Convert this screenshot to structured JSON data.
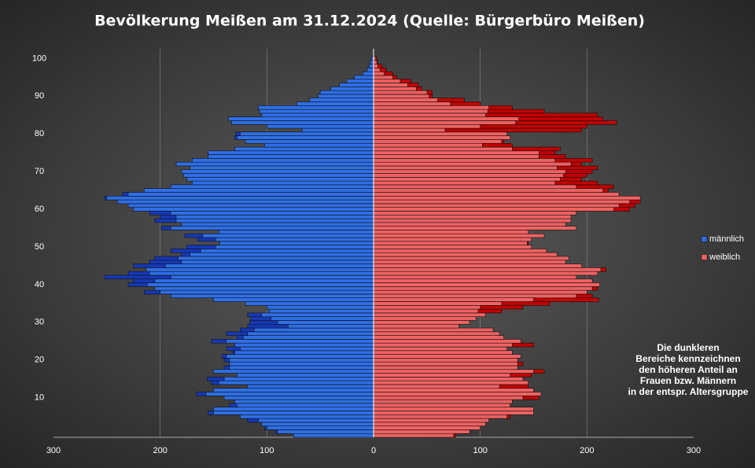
{
  "chart_data": {
    "type": "pyramid",
    "title": "Bevölkerung  Meißen  am  31.12.2024  (Quelle:  Bürgerbüro  Meißen)",
    "categories": [
      null,
      null,
      null,
      null,
      null,
      null,
      null,
      null,
      null,
      null,
      10,
      null,
      null,
      null,
      null,
      null,
      null,
      null,
      null,
      null,
      20,
      null,
      null,
      null,
      null,
      null,
      null,
      null,
      null,
      null,
      30,
      null,
      null,
      null,
      null,
      null,
      null,
      null,
      null,
      null,
      40,
      null,
      null,
      null,
      null,
      null,
      null,
      null,
      null,
      null,
      50,
      null,
      null,
      null,
      null,
      null,
      null,
      null,
      null,
      null,
      60,
      null,
      null,
      null,
      null,
      null,
      null,
      null,
      null,
      null,
      70,
      null,
      null,
      null,
      null,
      null,
      null,
      null,
      null,
      null,
      80,
      null,
      null,
      null,
      null,
      null,
      null,
      null,
      null,
      null,
      90,
      null,
      null,
      null,
      null,
      null,
      null,
      null,
      null,
      null,
      100
    ],
    "series": [
      {
        "name": "männlich",
        "color": "#2f6fe6",
        "dark_color": "#1538b5",
        "side": "left",
        "values": [
          75,
          92,
          102,
          105,
          118,
          125,
          155,
          150,
          135,
          130,
          140,
          166,
          150,
          118,
          152,
          156,
          128,
          150,
          140,
          135,
          140,
          142,
          132,
          138,
          130,
          152,
          128,
          138,
          125,
          118,
          116,
          115,
          118,
          98,
          100,
          120,
          150,
          190,
          215,
          205,
          230,
          225,
          252,
          230,
          213,
          225,
          210,
          205,
          180,
          190,
          175,
          144,
          165,
          177,
          145,
          199,
          180,
          205,
          200,
          210,
          225,
          230,
          240,
          252,
          235,
          215,
          190,
          170,
          175,
          178,
          180,
          172,
          185,
          170,
          155,
          155,
          130,
          102,
          120,
          130,
          129,
          67,
          100,
          133,
          136,
          105,
          107,
          108,
          72,
          60,
          52,
          50,
          40,
          32,
          25,
          18,
          10,
          6,
          4,
          3,
          2
        ]
      },
      {
        "name": "weiblich",
        "color": "#f06262",
        "dark_color": "#c00000",
        "side": "right",
        "values": [
          77,
          90,
          100,
          105,
          108,
          128,
          150,
          150,
          128,
          130,
          155,
          157,
          150,
          145,
          145,
          140,
          148,
          160,
          135,
          140,
          135,
          138,
          130,
          125,
          150,
          138,
          122,
          118,
          112,
          80,
          90,
          96,
          105,
          120,
          140,
          165,
          211,
          205,
          200,
          210,
          212,
          205,
          190,
          210,
          218,
          195,
          180,
          183,
          172,
          162,
          148,
          145,
          148,
          160,
          145,
          190,
          180,
          185,
          185,
          190,
          240,
          245,
          250,
          250,
          230,
          220,
          225,
          210,
          195,
          200,
          205,
          210,
          195,
          205,
          180,
          170,
          175,
          130,
          122,
          128,
          125,
          195,
          200,
          228,
          215,
          210,
          160,
          130,
          100,
          85,
          55,
          55,
          45,
          42,
          35,
          22,
          18,
          12,
          8,
          4,
          3
        ]
      }
    ],
    "xlim": [
      -300,
      300
    ],
    "xticks": [
      {
        "value": -300,
        "label": "300"
      },
      {
        "value": -200,
        "label": "200"
      },
      {
        "value": -100,
        "label": "100"
      },
      0,
      100,
      200,
      300
    ],
    "grid": true,
    "legend": "right",
    "annotation": [
      "Die dunkleren",
      "Bereiche kennzeichnen",
      "den höheren Anteil an",
      "Frauen bzw. Männern",
      "in der entspr. Altersgruppe"
    ]
  }
}
